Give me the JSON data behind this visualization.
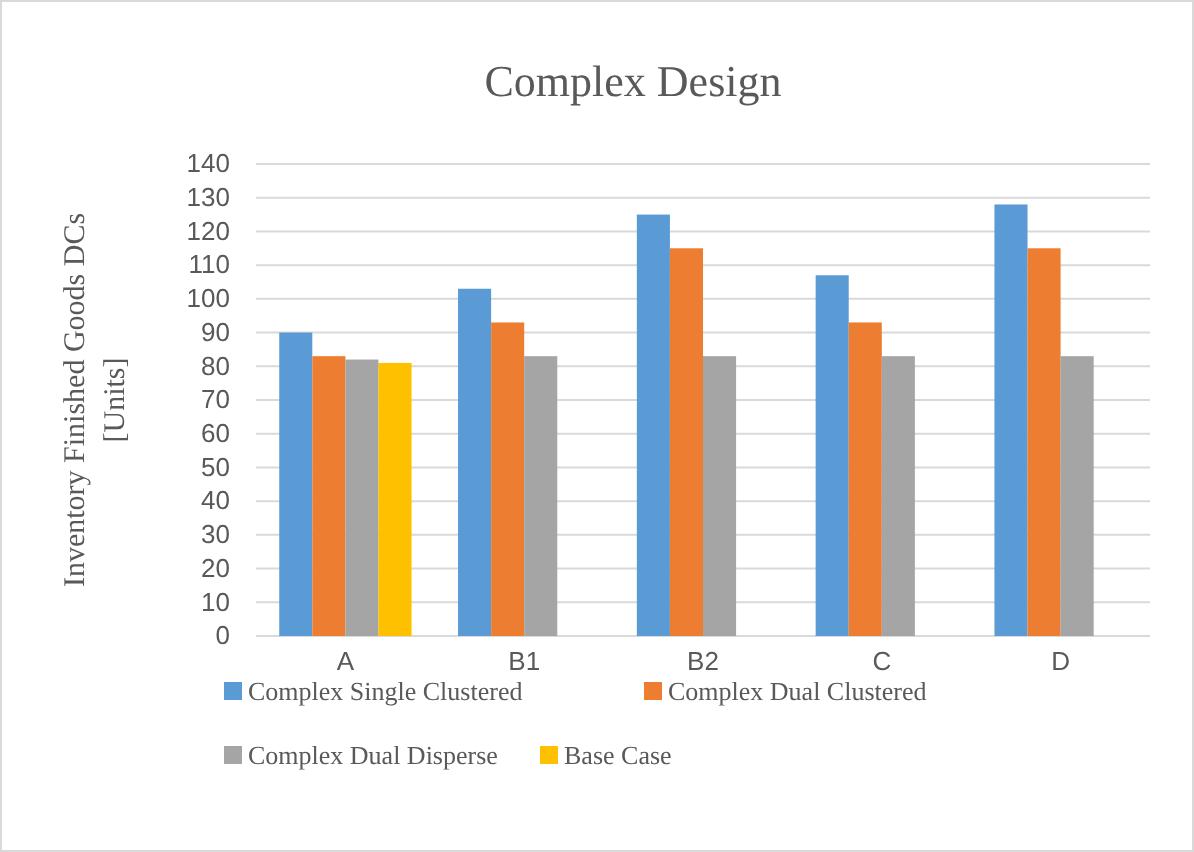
{
  "chart_data": {
    "type": "bar",
    "title": "Complex Design",
    "ylabel": "Inventory Finished Goods DCs [Units]",
    "categories": [
      "A",
      "B1",
      "B2",
      "C",
      "D"
    ],
    "series": [
      {
        "name": "Complex Single Clustered",
        "color": "#5b9bd5",
        "values": [
          90,
          103,
          125,
          107,
          128
        ]
      },
      {
        "name": "Complex Dual Clustered",
        "color": "#ed7d31",
        "values": [
          83,
          93,
          115,
          93,
          115
        ]
      },
      {
        "name": "Complex Dual Disperse",
        "color": "#a5a5a5",
        "values": [
          82,
          83,
          83,
          83,
          83
        ]
      },
      {
        "name": "Base Case",
        "color": "#ffc000",
        "values": [
          81,
          null,
          null,
          null,
          null
        ]
      }
    ],
    "ylim": [
      0,
      140
    ],
    "yticks": [
      0,
      10,
      20,
      30,
      40,
      50,
      60,
      70,
      80,
      90,
      100,
      110,
      120,
      130,
      140
    ],
    "grid": "y",
    "legend": "bottom"
  }
}
